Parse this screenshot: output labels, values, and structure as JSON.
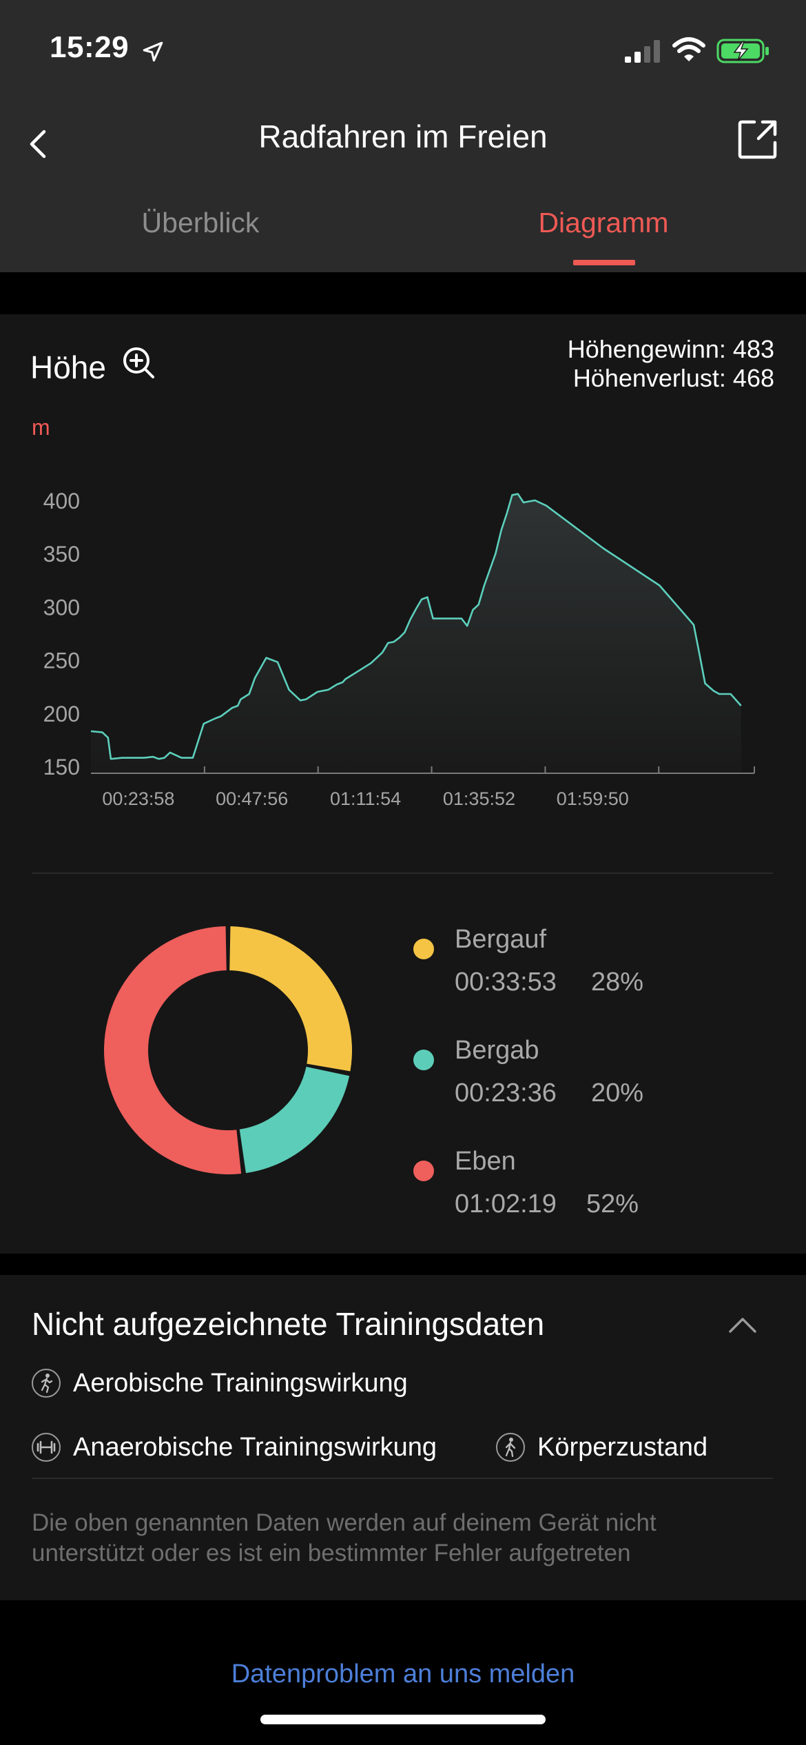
{
  "status_bar": {
    "time": "15:29"
  },
  "nav": {
    "title": "Radfahren im Freien",
    "tabs": [
      {
        "label": "Überblick",
        "active": false
      },
      {
        "label": "Diagramm",
        "active": true
      }
    ]
  },
  "altitude": {
    "title": "Höhe",
    "gain_text": "Höhengewinn: 483",
    "loss_text": "Höhenverlust: 468",
    "unit": "m"
  },
  "chart_data": {
    "type": "area",
    "title": "Höhe",
    "ylabel": "m",
    "ylim": [
      150,
      400
    ],
    "yticks": [
      "150",
      "200",
      "250",
      "300",
      "350",
      "400"
    ],
    "xticks": [
      "00:23:58",
      "00:47:56",
      "01:11:54",
      "01:35:52",
      "01:59:50"
    ],
    "x_minutes": [
      0,
      2.4,
      3.6,
      4.2,
      6.6,
      11.3,
      13.1,
      14.3,
      15.5,
      16.7,
      19.1,
      21.5,
      23.8,
      26.2,
      27.4,
      28.6,
      29.8,
      31.0,
      31.6,
      33.4,
      34.6,
      37.0,
      39.4,
      41.8,
      44.2,
      45.4,
      47.8,
      48.9,
      50.1,
      51.9,
      53.1,
      53.7,
      55.5,
      59.1,
      61.5,
      62.7,
      63.9,
      65.1,
      66.2,
      67.4,
      68.6,
      69.8,
      71.0,
      72.2,
      73.4,
      74.6,
      75.8,
      78.2,
      79.4,
      80.6,
      81.8,
      83.0,
      85.4,
      86.6,
      87.8,
      88.9,
      90.1,
      91.3,
      92.5,
      93.7,
      96.1,
      108.1,
      120.0,
      127.2,
      128.4,
      129.6,
      131.4,
      132.6,
      133.8,
      135.0,
      137.2
    ],
    "elevation": [
      183,
      182,
      177,
      157,
      158,
      158,
      159,
      157,
      158,
      163,
      158,
      158,
      190,
      195,
      197,
      201,
      205,
      207,
      213,
      218,
      233,
      252,
      248,
      222,
      212,
      213,
      220,
      221,
      222,
      227,
      229,
      232,
      237,
      247,
      257,
      266,
      267,
      271,
      276,
      288,
      298,
      307,
      309,
      289,
      289,
      289,
      289,
      289,
      282,
      297,
      302,
      320,
      350,
      372,
      388,
      405,
      406,
      398,
      399,
      400,
      395,
      355,
      320,
      283,
      256,
      228,
      221,
      218,
      218,
      218,
      207
    ],
    "breakdown": [
      {
        "name": "Bergauf",
        "time": "00:33:53",
        "percent": 28,
        "percent_label": "28%",
        "color": "#f5c445"
      },
      {
        "name": "Bergab",
        "time": "00:23:36",
        "percent": 20,
        "percent_label": "20%",
        "color": "#5ccdb8"
      },
      {
        "name": "Eben",
        "time": "01:02:19",
        "percent": 52,
        "percent_label": "52%",
        "color": "#ef5f5c"
      }
    ],
    "line_color": "#5cd0bd",
    "grid": false
  },
  "missing": {
    "title": "Nicht aufgezeichnete Trainingsdaten",
    "items": [
      {
        "label": "Aerobische Trainingswirkung",
        "icon": "runner-icon"
      },
      {
        "label": "Anaerobische Trainingswirkung",
        "icon": "dumbbell-icon"
      },
      {
        "label": "Körperzustand",
        "icon": "walker-icon"
      }
    ],
    "note": "Die oben genannten Daten werden auf deinem Gerät nicht unterstützt oder es ist ein bestimmter Fehler aufgetreten"
  },
  "report_link": "Datenproblem an uns melden",
  "colors": {
    "accent": "#ef5a55",
    "link": "#4d7fd9",
    "background": "#161616"
  }
}
